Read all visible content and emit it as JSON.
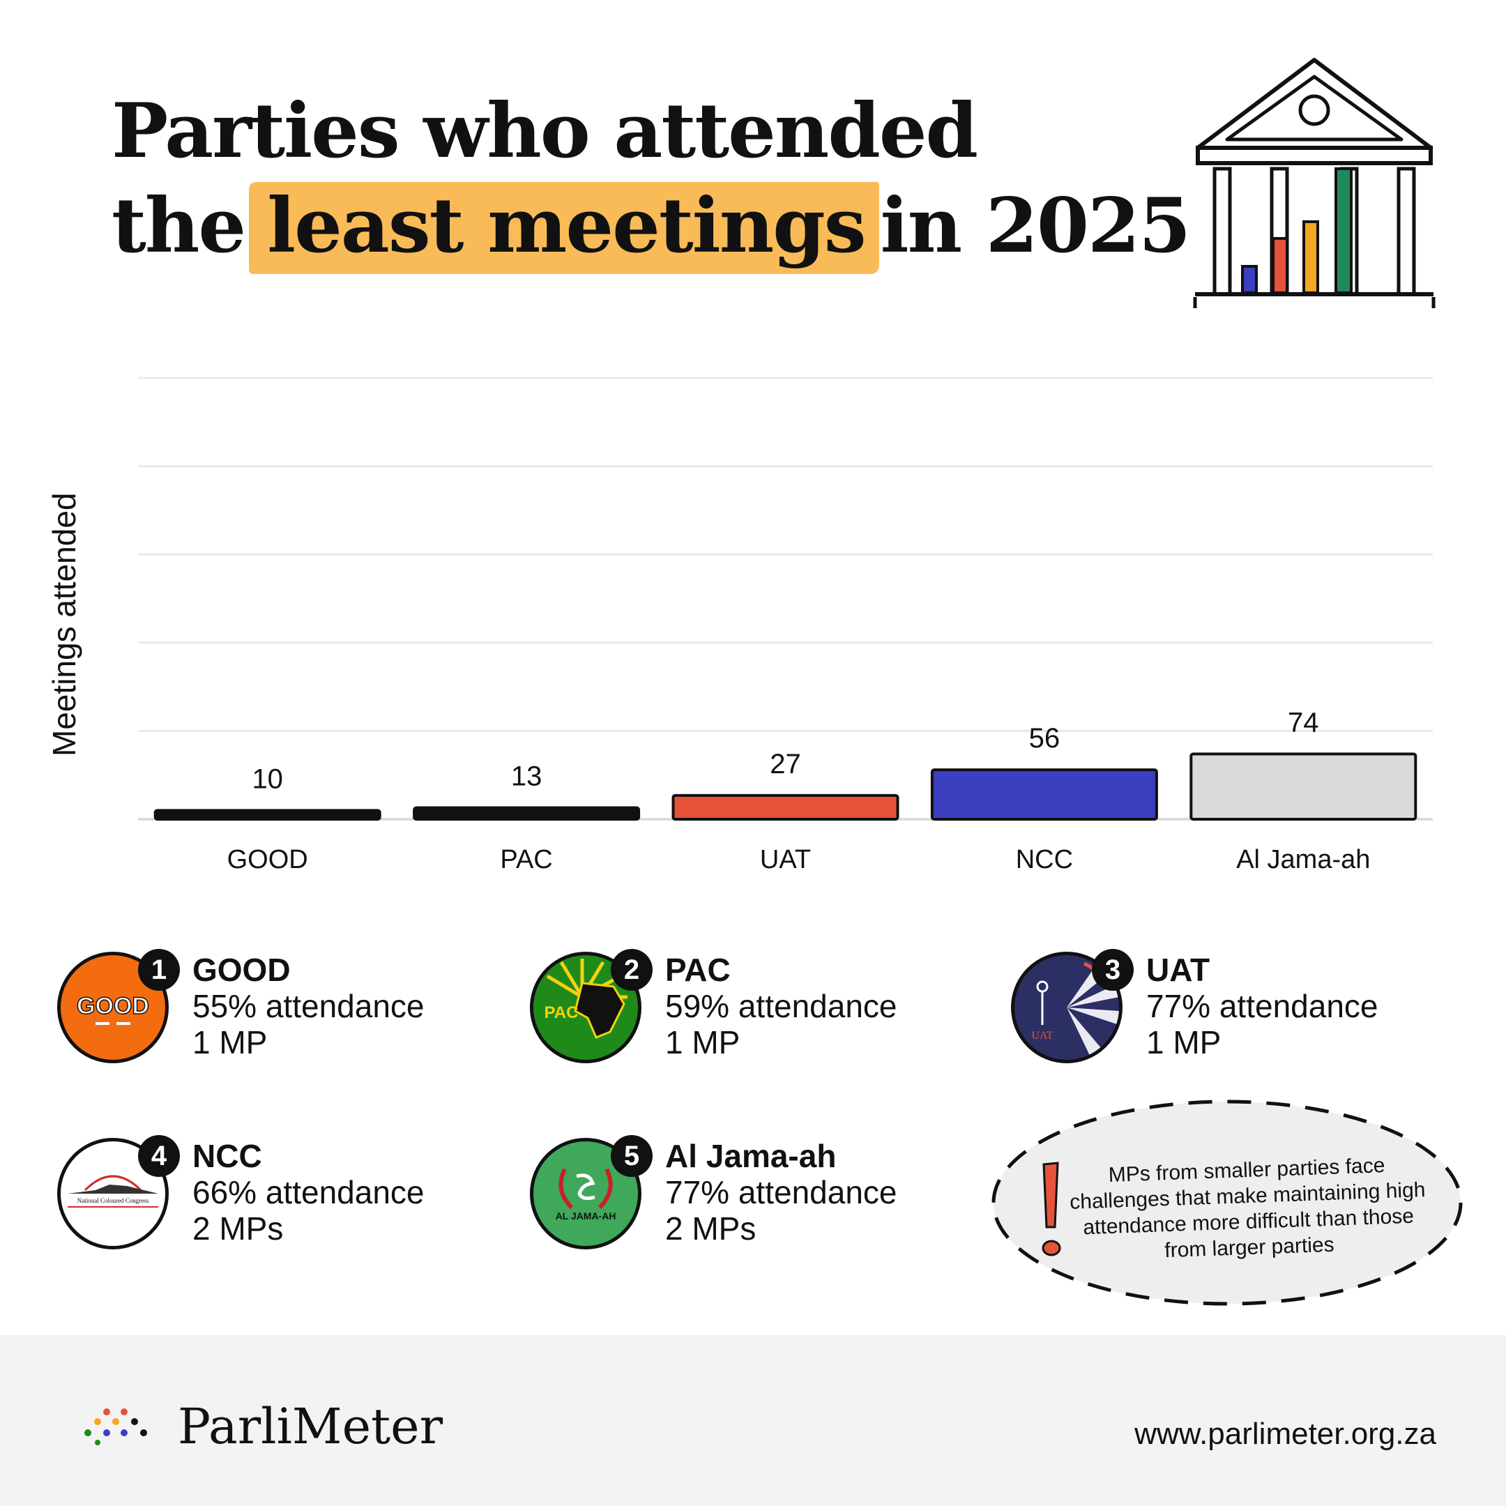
{
  "header": {
    "title_line1": "Parties who attended",
    "title_pre": "the",
    "title_highlight": "least meetings",
    "title_post": "in 2025"
  },
  "chart_data": {
    "type": "bar",
    "ylabel": "Meetings attended",
    "xlabel": "",
    "ylim": [
      0,
      500
    ],
    "grid": true,
    "categories": [
      "GOOD",
      "PAC",
      "UAT",
      "NCC",
      "Al Jama-ah"
    ],
    "values": [
      10,
      13,
      27,
      56,
      74
    ],
    "bar_colors": [
      "#111111",
      "#111111",
      "#e5533b",
      "#3b3fc0",
      "#d9d9d9"
    ]
  },
  "parties": [
    {
      "rank": "1",
      "name": "GOOD",
      "attendance": "55% attendance",
      "mps": "1 MP",
      "logo_text": "GOOD",
      "color": "#f36c0f"
    },
    {
      "rank": "2",
      "name": "PAC",
      "attendance": "59% attendance",
      "mps": "1 MP",
      "logo_text": "PAC",
      "color": "#1f8a1a"
    },
    {
      "rank": "3",
      "name": "UAT",
      "attendance": "77% attendance",
      "mps": "1 MP",
      "logo_text": "UAT",
      "color": "#2c2f63"
    },
    {
      "rank": "4",
      "name": "NCC",
      "attendance": "66% attendance",
      "mps": "2 MPs",
      "logo_text": "National Coloured Congress",
      "color": "#ffffff"
    },
    {
      "rank": "5",
      "name": "Al Jama-ah",
      "attendance": "77% attendance",
      "mps": "2 MPs",
      "logo_text": "AL JAMA-AH",
      "color": "#3fa85a"
    }
  ],
  "note": {
    "text": "MPs from smaller parties face challenges that make maintaining high attendance more difficult than those from larger parties",
    "icon": "exclamation-icon"
  },
  "footer": {
    "brand": "ParliMeter",
    "url": "www.parlimeter.org.za"
  }
}
